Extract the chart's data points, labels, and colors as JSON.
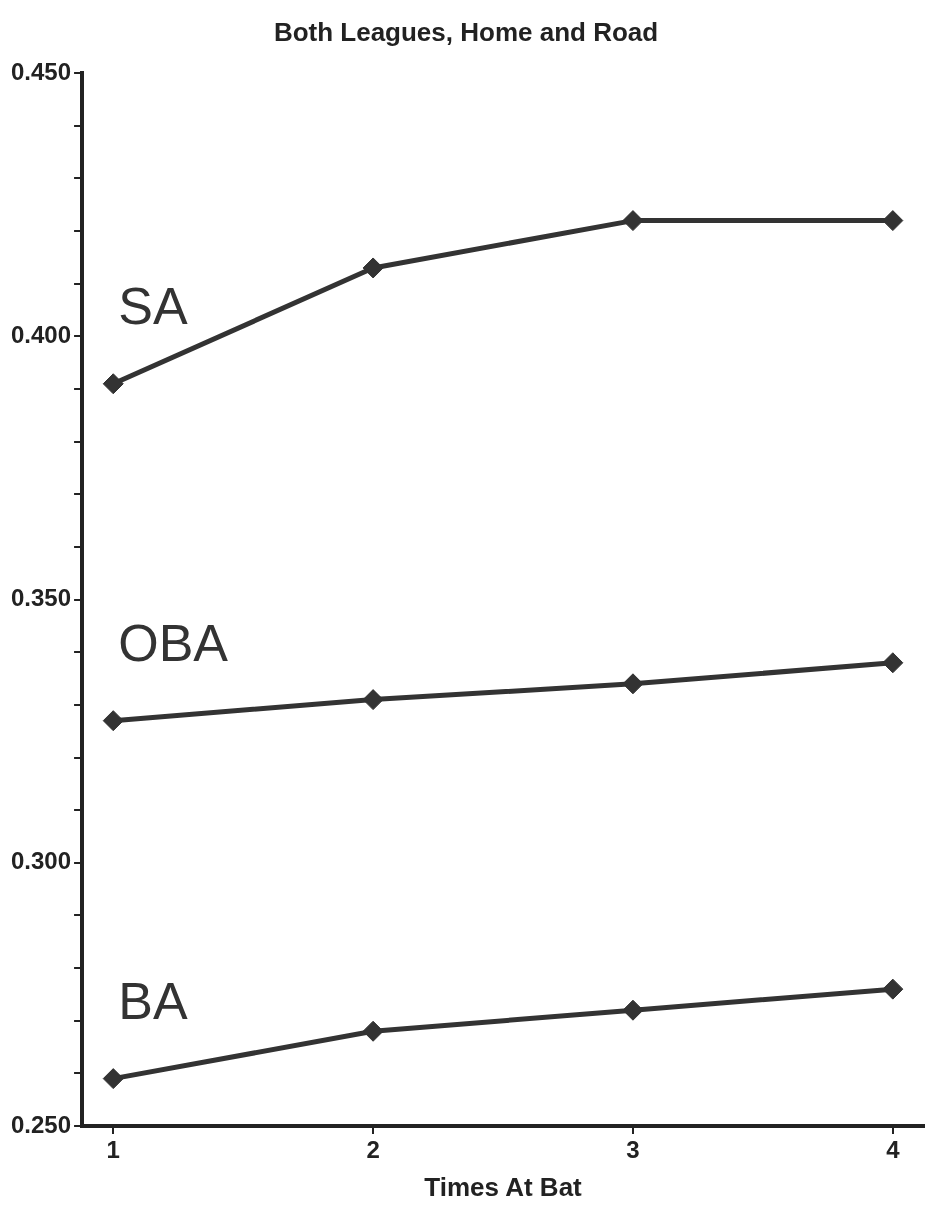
{
  "chart_data": {
    "type": "line",
    "title": "Both Leagues, Home and Road",
    "xlabel": "Times At Bat",
    "x": [
      1,
      2,
      3,
      4
    ],
    "xlim": [
      0.88,
      4.12
    ],
    "xticks": [
      1,
      2,
      3,
      4
    ],
    "ylim": [
      0.25,
      0.45
    ],
    "yticks": [
      {
        "value": 0.25,
        "label": "0.250"
      },
      {
        "value": 0.26,
        "label": null
      },
      {
        "value": 0.27,
        "label": null
      },
      {
        "value": 0.28,
        "label": null
      },
      {
        "value": 0.29,
        "label": null
      },
      {
        "value": 0.3,
        "label": "0.300"
      },
      {
        "value": 0.31,
        "label": null
      },
      {
        "value": 0.32,
        "label": null
      },
      {
        "value": 0.33,
        "label": null
      },
      {
        "value": 0.34,
        "label": null
      },
      {
        "value": 0.35,
        "label": "0.350"
      },
      {
        "value": 0.36,
        "label": null
      },
      {
        "value": 0.37,
        "label": null
      },
      {
        "value": 0.38,
        "label": null
      },
      {
        "value": 0.39,
        "label": null
      },
      {
        "value": 0.4,
        "label": "0.400"
      },
      {
        "value": 0.41,
        "label": null
      },
      {
        "value": 0.42,
        "label": null
      },
      {
        "value": 0.43,
        "label": null
      },
      {
        "value": 0.44,
        "label": null
      },
      {
        "value": 0.45,
        "label": "0.450"
      }
    ],
    "grid": false,
    "legend": false,
    "marker": "diamond",
    "line_style": "solid",
    "series": [
      {
        "name": "SA",
        "color": "#333333",
        "values": [
          0.391,
          0.413,
          0.422,
          0.422
        ]
      },
      {
        "name": "OBA",
        "color": "#333333",
        "values": [
          0.327,
          0.331,
          0.334,
          0.338
        ]
      },
      {
        "name": "BA",
        "color": "#333333",
        "values": [
          0.259,
          0.268,
          0.272,
          0.276
        ]
      }
    ]
  }
}
